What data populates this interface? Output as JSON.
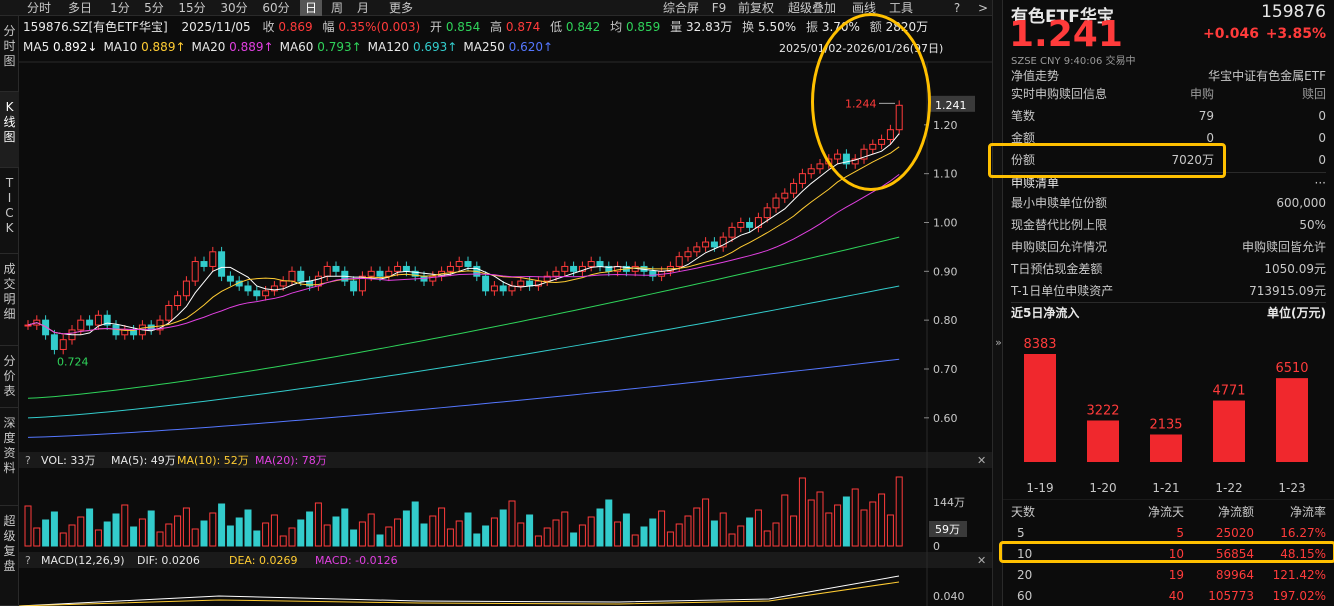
{
  "toolbar": {
    "tabs": [
      "分时",
      "多日",
      "1分",
      "5分",
      "15分",
      "30分",
      "60分",
      "日",
      "周",
      "月",
      "更多"
    ],
    "active": "日",
    "right": [
      "综合屏",
      "F9",
      "前复权",
      "超级叠加",
      "画线",
      "工具"
    ]
  },
  "leftnav": [
    "分\n时\n图",
    "K\n线\n图",
    "T\nI\nC\nK",
    "成\n交\n明\n细",
    "分\n价\n表",
    "深\n度\n资\n料",
    "超\n级\n复\n盘"
  ],
  "quote": {
    "code_name": "159876.SZ[有色ETF华宝]",
    "date": "2025/11/05",
    "close_label": "收",
    "close": "0.869",
    "chg_label": "幅",
    "chg": "0.35%(0.003)",
    "open_label": "开",
    "open": "0.854",
    "high_label": "高",
    "high": "0.874",
    "low_label": "低",
    "low": "0.842",
    "avg_label": "均",
    "avg": "0.859",
    "vol_label": "量",
    "vol": "32.83万",
    "turnover_label": "换",
    "turnover": "5.50%",
    "amp_label": "振",
    "amp": "3.70%",
    "amt_label": "额",
    "amt": "2820万"
  },
  "ma": [
    {
      "name": "MA5",
      "value": "0.892",
      "color": "#ffffff",
      "arrow": "↓"
    },
    {
      "name": "MA10",
      "value": "0.889",
      "color": "#ffcc33",
      "arrow": "↑"
    },
    {
      "name": "MA20",
      "value": "0.889",
      "color": "#e040e0",
      "arrow": "↑"
    },
    {
      "name": "MA60",
      "value": "0.793",
      "color": "#2fd35a",
      "arrow": "↑"
    },
    {
      "name": "MA120",
      "value": "0.693",
      "color": "#33cccc",
      "arrow": "↑"
    },
    {
      "name": "MA250",
      "value": "0.620",
      "color": "#5577ff",
      "arrow": "↑"
    }
  ],
  "range": "2025/01/02-2026/01/26(97日)",
  "price_axis": {
    "ticks": [
      "1.20",
      "1.10",
      "1.00",
      "0.90",
      "0.80",
      "0.70",
      "0.60"
    ],
    "current": "1.241",
    "high_marker": "1.244",
    "low_marker": "0.724"
  },
  "vol_panel": {
    "label": "VOL: 33万",
    "ma5": "MA(5): 49万",
    "ma10": "MA(10): 52万",
    "ma20": "MA(20): 78万",
    "ticks": [
      "144万",
      "59万",
      "0"
    ]
  },
  "macd_panel": {
    "label": "MACD(12,26,9)",
    "dif": "DIF: 0.0206",
    "dea": "DEA: 0.0269",
    "macd": "MACD: -0.0126",
    "tick": "0.040"
  },
  "right": {
    "name": "有色ETF华宝",
    "code": "159876",
    "price": "1.241",
    "change": "+0.046",
    "pct": "+3.85%",
    "meta": "SZSE CNY 9:40:06 交易中",
    "nav_label": "净值走势",
    "nav_value": "华宝中证有色金属ETF",
    "sub_title": "实时申购赎回信息",
    "sub_col": "申购",
    "red_col": "赎回",
    "rows": [
      {
        "k": "笔数",
        "a": "79",
        "b": "0"
      },
      {
        "k": "金额",
        "a": "0",
        "b": "0"
      },
      {
        "k": "份额",
        "a": "7020万",
        "b": "0"
      }
    ],
    "list_title": "申赎清单",
    "list": [
      {
        "k": "最小申赎单位份额",
        "v": "600,000"
      },
      {
        "k": "现金替代比例上限",
        "v": "50%"
      },
      {
        "k": "申购赎回允许情况",
        "v": "申购赎回皆允许"
      },
      {
        "k": "T日预估现金差额",
        "v": "1050.09元"
      },
      {
        "k": "T-1日单位申赎资产",
        "v": "713915.09元"
      }
    ],
    "flow_title": "近5日净流入",
    "flow_unit": "单位(万元)"
  },
  "chart_data": {
    "type": "bar",
    "categories": [
      "1-19",
      "1-20",
      "1-21",
      "1-22",
      "1-23"
    ],
    "values": [
      8383,
      3222,
      2135,
      4771,
      6510
    ],
    "ylim": [
      0,
      8383
    ]
  },
  "flow_table": {
    "headers": [
      "天数",
      "净流天",
      "净流额",
      "净流率"
    ],
    "rows": [
      [
        "5",
        "5",
        "25020",
        "16.27%"
      ],
      [
        "10",
        "10",
        "56854",
        "48.15%"
      ],
      [
        "20",
        "19",
        "89964",
        "121.42%"
      ],
      [
        "60",
        "40",
        "105773",
        "197.02%"
      ]
    ]
  }
}
